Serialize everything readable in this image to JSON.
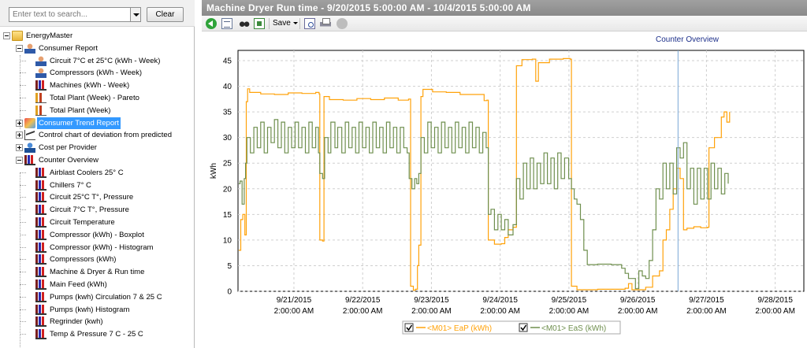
{
  "search": {
    "placeholder": "Enter text to search...",
    "clear_label": "Clear"
  },
  "tree": {
    "root": "EnergyMaster",
    "consumer_report": "Consumer Report",
    "consumer_report_items": [
      "Circuit 7°C et 25°C (kWh - Week)",
      "Compressors (kWh - Week)",
      "Machines (kWh - Week)",
      "Total Plant (Week) - Pareto",
      "Total Plant (Week)"
    ],
    "consumer_trend": "Consumer Trend Report",
    "control_chart": "Control chart of deviation from predicted",
    "cost": "Cost per Provider",
    "counter_overview": "Counter Overview",
    "counter_items": [
      "Airblast Coolers 25° C",
      "Chillers 7° C",
      "Circuit 25°C T°, Pressure",
      "Circuit 7°C T°, Pressure",
      "Circuit Temperature",
      "Compressor (kWh) - Boxplot",
      "Compressor (kWh) - Histogram",
      "Compressors (kWh)",
      "Machine & Dryer & Run time",
      "Main Feed  (kWh)",
      "Pumps (kwh) Circulation 7 & 25 C",
      "Pumps (kwh) Histogram",
      "Regrinder (kwh)",
      "Temp & Pressure 7 C - 25 C"
    ]
  },
  "title": "Machine  Dryer  Run time - 9/20/2015 5:00:00 AM - 10/4/2015 5:00:00 AM",
  "toolbar": {
    "save_label": "Save"
  },
  "report_title": "Counter Overview",
  "colors": {
    "eap": "#ffa20a",
    "eas": "#6f8f4e",
    "selection": "#3399ff"
  },
  "chart_data": {
    "type": "line",
    "ylabel": "kWh",
    "ylim": [
      0,
      47
    ],
    "yticks": [
      "0",
      "5",
      "10",
      "15",
      "20",
      "25",
      "30",
      "35",
      "40",
      "45"
    ],
    "x_tick_dates": [
      "9/21/2015",
      "9/22/2015",
      "9/23/2015",
      "9/24/2015",
      "9/25/2015",
      "9/26/2015",
      "9/27/2015",
      "9/28/2015"
    ],
    "x_tick_times": [
      "2:00:00 AM",
      "2:00:00 AM",
      "2:00:00 AM",
      "2:00:00 AM",
      "2:00:00 AM",
      "2:00:00 AM",
      "2:00:00 AM",
      "2:00:00 AM"
    ],
    "x_range_days": [
      20.27,
      28.5
    ],
    "grid": true,
    "legend": "bottom",
    "series": [
      {
        "name": "<M01> EaP (kWh)",
        "points": [
          [
            20.28,
            8
          ],
          [
            20.31,
            14
          ],
          [
            20.34,
            15
          ],
          [
            20.37,
            11
          ],
          [
            20.39,
            37
          ],
          [
            20.41,
            39.5
          ],
          [
            20.44,
            38.8
          ],
          [
            20.6,
            38.5
          ],
          [
            20.8,
            38.4
          ],
          [
            21.0,
            38.7
          ],
          [
            21.2,
            38.6
          ],
          [
            21.4,
            38.8
          ],
          [
            21.45,
            38.5
          ],
          [
            21.46,
            10
          ],
          [
            21.5,
            9.8
          ],
          [
            21.52,
            38
          ],
          [
            21.6,
            37.4
          ],
          [
            21.8,
            37.3
          ],
          [
            22.0,
            37.6
          ],
          [
            22.2,
            37.4
          ],
          [
            22.4,
            37.7
          ],
          [
            22.6,
            37.3
          ],
          [
            22.75,
            37.5
          ],
          [
            22.78,
            1
          ],
          [
            22.82,
            0.2
          ],
          [
            22.85,
            0.4
          ],
          [
            22.88,
            5
          ],
          [
            22.9,
            9
          ],
          [
            22.93,
            38
          ],
          [
            22.96,
            39.4
          ],
          [
            23.1,
            38.9
          ],
          [
            23.3,
            38.8
          ],
          [
            23.5,
            38.4
          ],
          [
            23.7,
            38.4
          ],
          [
            23.85,
            37.2
          ],
          [
            23.89,
            37.3
          ],
          [
            23.91,
            10
          ],
          [
            24.0,
            9.2
          ],
          [
            24.1,
            9.3
          ],
          [
            24.15,
            10.5
          ],
          [
            24.2,
            12
          ],
          [
            24.27,
            12.5
          ],
          [
            24.32,
            44
          ],
          [
            24.4,
            45.2
          ],
          [
            24.55,
            45.3
          ],
          [
            24.6,
            41
          ],
          [
            24.64,
            44.6
          ],
          [
            24.8,
            45.3
          ],
          [
            25.0,
            45.4
          ],
          [
            25.1,
            45.3
          ],
          [
            25.12,
            1
          ],
          [
            25.2,
            0.3
          ],
          [
            25.5,
            0.4
          ],
          [
            25.8,
            0.4
          ],
          [
            25.9,
            0.6
          ],
          [
            25.95,
            1.5
          ],
          [
            26.0,
            0.3
          ],
          [
            26.2,
            0.8
          ],
          [
            26.3,
            3
          ],
          [
            26.4,
            4
          ],
          [
            26.45,
            10
          ],
          [
            26.5,
            12
          ],
          [
            26.55,
            16
          ],
          [
            26.6,
            20
          ],
          [
            26.65,
            24
          ],
          [
            26.7,
            22
          ],
          [
            26.75,
            12
          ],
          [
            26.8,
            12.3
          ],
          [
            26.9,
            12.6
          ],
          [
            27.0,
            12.4
          ],
          [
            27.1,
            12.5
          ],
          [
            27.12,
            28
          ],
          [
            27.2,
            30
          ],
          [
            27.3,
            34
          ],
          [
            27.34,
            35
          ],
          [
            27.38,
            33
          ],
          [
            27.42,
            35
          ]
        ]
      },
      {
        "name": "<M01> EaS (kWh)",
        "points": [
          [
            20.28,
            21
          ],
          [
            20.3,
            21.5
          ],
          [
            20.33,
            17
          ],
          [
            20.36,
            22
          ],
          [
            20.38,
            25
          ],
          [
            20.4,
            30
          ],
          [
            20.45,
            27
          ],
          [
            20.5,
            32
          ],
          [
            20.55,
            28
          ],
          [
            20.6,
            33
          ],
          [
            20.65,
            27
          ],
          [
            20.7,
            32
          ],
          [
            20.75,
            29
          ],
          [
            20.8,
            33.5
          ],
          [
            20.85,
            28
          ],
          [
            20.9,
            33
          ],
          [
            20.95,
            27
          ],
          [
            21.0,
            32
          ],
          [
            21.05,
            28
          ],
          [
            21.1,
            33
          ],
          [
            21.15,
            28
          ],
          [
            21.2,
            32
          ],
          [
            21.25,
            27
          ],
          [
            21.3,
            33
          ],
          [
            21.35,
            28
          ],
          [
            21.4,
            32
          ],
          [
            21.44,
            27
          ],
          [
            21.46,
            23
          ],
          [
            21.5,
            22
          ],
          [
            21.53,
            30
          ],
          [
            21.58,
            27
          ],
          [
            21.62,
            33
          ],
          [
            21.68,
            28
          ],
          [
            21.72,
            32
          ],
          [
            21.78,
            27
          ],
          [
            21.83,
            33
          ],
          [
            21.88,
            28
          ],
          [
            21.93,
            32
          ],
          [
            21.98,
            27
          ],
          [
            22.03,
            33
          ],
          [
            22.08,
            28
          ],
          [
            22.13,
            32
          ],
          [
            22.18,
            27
          ],
          [
            22.23,
            33
          ],
          [
            22.28,
            28
          ],
          [
            22.33,
            32
          ],
          [
            22.38,
            27
          ],
          [
            22.43,
            33
          ],
          [
            22.48,
            28
          ],
          [
            22.53,
            32
          ],
          [
            22.58,
            27
          ],
          [
            22.63,
            32
          ],
          [
            22.68,
            28
          ],
          [
            22.73,
            27
          ],
          [
            22.76,
            22
          ],
          [
            22.8,
            20
          ],
          [
            22.84,
            22
          ],
          [
            22.87,
            21
          ],
          [
            22.9,
            23
          ],
          [
            22.93,
            30
          ],
          [
            22.98,
            27
          ],
          [
            23.03,
            33
          ],
          [
            23.08,
            28
          ],
          [
            23.13,
            32
          ],
          [
            23.18,
            27
          ],
          [
            23.23,
            33
          ],
          [
            23.28,
            28
          ],
          [
            23.33,
            32
          ],
          [
            23.38,
            27
          ],
          [
            23.43,
            33
          ],
          [
            23.48,
            28
          ],
          [
            23.53,
            32
          ],
          [
            23.58,
            27
          ],
          [
            23.63,
            33
          ],
          [
            23.68,
            28
          ],
          [
            23.73,
            32
          ],
          [
            23.78,
            27
          ],
          [
            23.83,
            31
          ],
          [
            23.88,
            28
          ],
          [
            23.91,
            15
          ],
          [
            23.95,
            16
          ],
          [
            24.0,
            12
          ],
          [
            24.05,
            15
          ],
          [
            24.1,
            12
          ],
          [
            24.15,
            14
          ],
          [
            24.2,
            11
          ],
          [
            24.27,
            13
          ],
          [
            24.32,
            22
          ],
          [
            24.37,
            18
          ],
          [
            24.42,
            25
          ],
          [
            24.47,
            20
          ],
          [
            24.52,
            26
          ],
          [
            24.57,
            20
          ],
          [
            24.62,
            25
          ],
          [
            24.67,
            21
          ],
          [
            24.72,
            27
          ],
          [
            24.77,
            21
          ],
          [
            24.82,
            26
          ],
          [
            24.87,
            20
          ],
          [
            24.92,
            27
          ],
          [
            24.97,
            22
          ],
          [
            25.02,
            26
          ],
          [
            25.08,
            22
          ],
          [
            25.12,
            20
          ],
          [
            25.16,
            18
          ],
          [
            25.2,
            17
          ],
          [
            25.25,
            14
          ],
          [
            25.3,
            8
          ],
          [
            25.35,
            5.2
          ],
          [
            25.5,
            5.3
          ],
          [
            25.7,
            5.2
          ],
          [
            25.85,
            4.5
          ],
          [
            25.9,
            3.5
          ],
          [
            25.95,
            2.5
          ],
          [
            26.0,
            2.5
          ],
          [
            26.05,
            0.5
          ],
          [
            26.1,
            4
          ],
          [
            26.15,
            3
          ],
          [
            26.2,
            2.5
          ],
          [
            26.25,
            6
          ],
          [
            26.3,
            12
          ],
          [
            26.35,
            20
          ],
          [
            26.4,
            18
          ],
          [
            26.45,
            25
          ],
          [
            26.5,
            20
          ],
          [
            26.55,
            25
          ],
          [
            26.6,
            19
          ],
          [
            26.65,
            28
          ],
          [
            26.7,
            26
          ],
          [
            26.75,
            29
          ],
          [
            26.8,
            20
          ],
          [
            26.85,
            24
          ],
          [
            26.9,
            17
          ],
          [
            26.95,
            24
          ],
          [
            27.0,
            18
          ],
          [
            27.05,
            24
          ],
          [
            27.1,
            18
          ],
          [
            27.15,
            25
          ],
          [
            27.2,
            20
          ],
          [
            27.25,
            24
          ],
          [
            27.3,
            19
          ],
          [
            27.35,
            23
          ],
          [
            27.4,
            21
          ]
        ]
      }
    ]
  }
}
